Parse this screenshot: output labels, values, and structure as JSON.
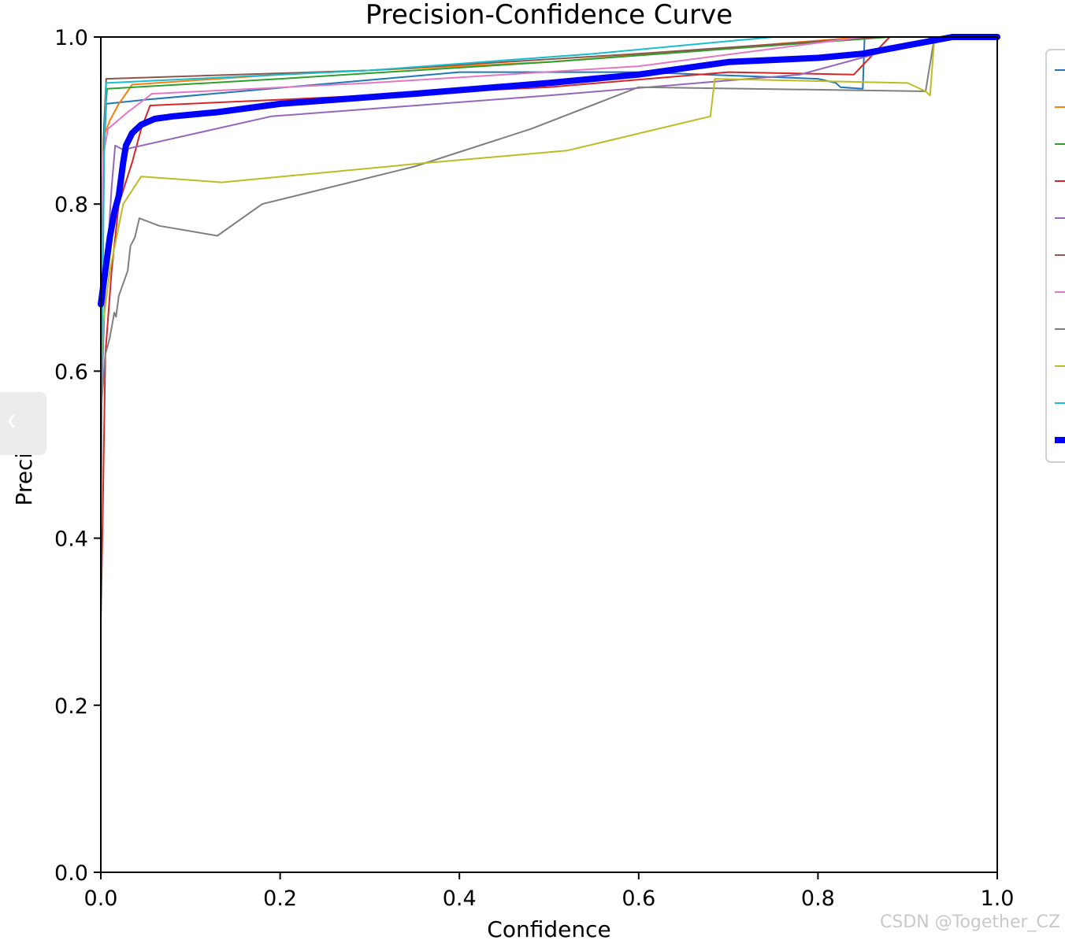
{
  "chart_data": {
    "type": "line",
    "title": "Precision-Confidence Curve",
    "xlabel": "Confidence",
    "ylabel": "Precision",
    "xlim": [
      0.0,
      1.0
    ],
    "ylim": [
      0.0,
      1.0
    ],
    "xticks": [
      "0.0",
      "0.2",
      "0.4",
      "0.6",
      "0.8",
      "1.0"
    ],
    "yticks": [
      "0.0",
      "0.2",
      "0.4",
      "0.6",
      "0.8",
      "1.0"
    ],
    "grid": false,
    "legend": "right (entry labels cut off)",
    "series": [
      {
        "color": "#1f77b4",
        "width": 2,
        "points": [
          [
            0.0,
            0.42
          ],
          [
            0.003,
            0.85
          ],
          [
            0.006,
            0.92
          ],
          [
            0.05,
            0.925
          ],
          [
            0.4,
            0.958
          ],
          [
            0.6,
            0.958
          ],
          [
            0.8,
            0.95
          ],
          [
            0.82,
            0.945
          ],
          [
            0.825,
            0.94
          ],
          [
            0.85,
            0.938
          ],
          [
            0.852,
            1.0
          ],
          [
            1.0,
            1.0
          ]
        ]
      },
      {
        "color": "#ff7f0e",
        "width": 2,
        "points": [
          [
            0.0,
            0.62
          ],
          [
            0.003,
            0.88
          ],
          [
            0.01,
            0.9
          ],
          [
            0.02,
            0.92
          ],
          [
            0.035,
            0.943
          ],
          [
            0.2,
            0.955
          ],
          [
            0.5,
            0.97
          ],
          [
            0.85,
            1.0
          ],
          [
            1.0,
            1.0
          ]
        ]
      },
      {
        "color": "#2ca02c",
        "width": 2,
        "points": [
          [
            0.0,
            0.65
          ],
          [
            0.004,
            0.9
          ],
          [
            0.007,
            0.938
          ],
          [
            0.2,
            0.95
          ],
          [
            0.5,
            0.97
          ],
          [
            0.88,
            1.0
          ],
          [
            1.0,
            1.0
          ]
        ]
      },
      {
        "color": "#d62728",
        "width": 2,
        "points": [
          [
            0.0,
            0.3
          ],
          [
            0.002,
            0.42
          ],
          [
            0.005,
            0.62
          ],
          [
            0.012,
            0.72
          ],
          [
            0.02,
            0.8
          ],
          [
            0.035,
            0.85
          ],
          [
            0.045,
            0.89
          ],
          [
            0.055,
            0.918
          ],
          [
            0.2,
            0.925
          ],
          [
            0.5,
            0.94
          ],
          [
            0.7,
            0.958
          ],
          [
            0.84,
            0.955
          ],
          [
            0.88,
            1.0
          ],
          [
            1.0,
            1.0
          ]
        ]
      },
      {
        "color": "#9467bd",
        "width": 2,
        "points": [
          [
            0.0,
            0.55
          ],
          [
            0.005,
            0.7
          ],
          [
            0.012,
            0.82
          ],
          [
            0.016,
            0.87
          ],
          [
            0.025,
            0.865
          ],
          [
            0.19,
            0.905
          ],
          [
            0.5,
            0.93
          ],
          [
            0.7,
            0.948
          ],
          [
            0.78,
            0.955
          ],
          [
            0.9,
            0.99
          ],
          [
            0.93,
            1.0
          ],
          [
            1.0,
            1.0
          ]
        ]
      },
      {
        "color": "#8c564b",
        "width": 2,
        "points": [
          [
            0.0,
            0.6
          ],
          [
            0.003,
            0.88
          ],
          [
            0.006,
            0.95
          ],
          [
            0.3,
            0.96
          ],
          [
            0.6,
            0.98
          ],
          [
            0.87,
            1.0
          ],
          [
            1.0,
            1.0
          ]
        ]
      },
      {
        "color": "#e377c2",
        "width": 2,
        "points": [
          [
            0.0,
            0.6
          ],
          [
            0.003,
            0.86
          ],
          [
            0.008,
            0.89
          ],
          [
            0.03,
            0.91
          ],
          [
            0.057,
            0.932
          ],
          [
            0.3,
            0.945
          ],
          [
            0.6,
            0.965
          ],
          [
            0.85,
            1.0
          ],
          [
            1.0,
            1.0
          ]
        ]
      },
      {
        "color": "#7f7f7f",
        "width": 2,
        "points": [
          [
            0.0,
            0.55
          ],
          [
            0.005,
            0.62
          ],
          [
            0.01,
            0.64
          ],
          [
            0.015,
            0.67
          ],
          [
            0.017,
            0.665
          ],
          [
            0.02,
            0.69
          ],
          [
            0.03,
            0.72
          ],
          [
            0.033,
            0.75
          ],
          [
            0.038,
            0.76
          ],
          [
            0.043,
            0.783
          ],
          [
            0.065,
            0.774
          ],
          [
            0.13,
            0.762
          ],
          [
            0.18,
            0.8
          ],
          [
            0.35,
            0.845
          ],
          [
            0.48,
            0.89
          ],
          [
            0.6,
            0.94
          ],
          [
            0.92,
            0.935
          ],
          [
            0.93,
            1.0
          ],
          [
            1.0,
            1.0
          ]
        ]
      },
      {
        "color": "#bcbd22",
        "width": 2,
        "points": [
          [
            0.0,
            0.58
          ],
          [
            0.003,
            0.66
          ],
          [
            0.01,
            0.72
          ],
          [
            0.025,
            0.8
          ],
          [
            0.045,
            0.833
          ],
          [
            0.135,
            0.826
          ],
          [
            0.35,
            0.848
          ],
          [
            0.52,
            0.864
          ],
          [
            0.68,
            0.905
          ],
          [
            0.685,
            0.95
          ],
          [
            0.9,
            0.945
          ],
          [
            0.92,
            0.935
          ],
          [
            0.925,
            0.93
          ],
          [
            0.93,
            1.0
          ],
          [
            1.0,
            1.0
          ]
        ]
      },
      {
        "color": "#17becf",
        "width": 2,
        "points": [
          [
            0.0,
            0.5
          ],
          [
            0.004,
            0.88
          ],
          [
            0.006,
            0.945
          ],
          [
            0.3,
            0.96
          ],
          [
            0.55,
            0.98
          ],
          [
            0.75,
            1.0
          ],
          [
            1.0,
            1.0
          ]
        ]
      },
      {
        "color": "#0000ff",
        "width": 8,
        "points": [
          [
            0.0,
            0.68
          ],
          [
            0.005,
            0.72
          ],
          [
            0.01,
            0.76
          ],
          [
            0.015,
            0.79
          ],
          [
            0.02,
            0.81
          ],
          [
            0.025,
            0.85
          ],
          [
            0.028,
            0.87
          ],
          [
            0.035,
            0.885
          ],
          [
            0.045,
            0.895
          ],
          [
            0.06,
            0.902
          ],
          [
            0.08,
            0.905
          ],
          [
            0.13,
            0.91
          ],
          [
            0.2,
            0.92
          ],
          [
            0.35,
            0.932
          ],
          [
            0.5,
            0.945
          ],
          [
            0.6,
            0.955
          ],
          [
            0.7,
            0.97
          ],
          [
            0.8,
            0.975
          ],
          [
            0.85,
            0.98
          ],
          [
            0.9,
            0.99
          ],
          [
            0.95,
            1.0
          ],
          [
            1.0,
            1.0
          ]
        ]
      }
    ]
  },
  "watermark": "CSDN @Together_CZ",
  "side_tab_glyph": "❮"
}
